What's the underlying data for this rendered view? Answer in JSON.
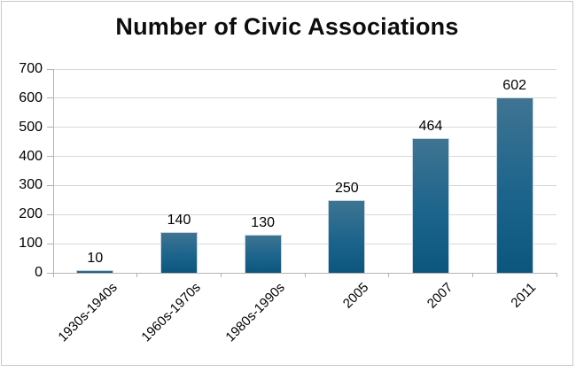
{
  "chart_data": {
    "type": "bar",
    "title": "Number of Civic Associations",
    "categories": [
      "1930s-1940s",
      "1960s-1970s",
      "1980s-1990s",
      "2005",
      "2007",
      "2011"
    ],
    "values": [
      10,
      140,
      130,
      250,
      464,
      602
    ],
    "xlabel": "",
    "ylabel": "",
    "ylim": [
      0,
      700
    ],
    "ytick_step": 100,
    "ytick_labels": [
      "0",
      "100",
      "200",
      "300",
      "400",
      "500",
      "600",
      "700"
    ],
    "grid": true,
    "legend": false,
    "colors": {
      "bar_gradient_top": "#3f7492",
      "bar_gradient_mid": "#1c648c",
      "bar_gradient_bottom": "#0c567e",
      "bar_border": "#c6d5df",
      "gridline": "#d9d9d9",
      "axis": "#b3b3b3",
      "text": "#000000",
      "frame_border": "#c9c9c9",
      "background": "#ffffff"
    }
  }
}
